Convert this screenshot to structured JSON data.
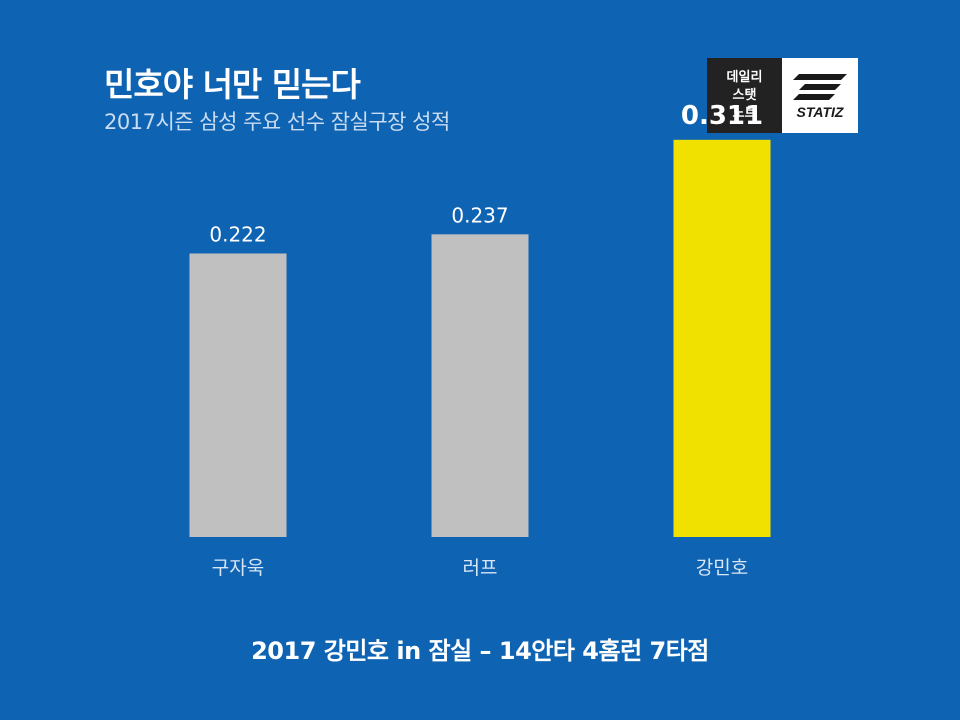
{
  "header": {
    "title": "민호야 너만 믿는다",
    "subtitle": "2017시즌 삼성 주요 선수 잠실구장 성적"
  },
  "logo": {
    "lines": [
      "데일리",
      "스탯",
      "노트"
    ],
    "brand": "STATIZ"
  },
  "colors": {
    "background": "#0f63b3",
    "bar_default": "#c0c0c0",
    "bar_highlight": "#f0e100",
    "text": "#ffffff"
  },
  "chart_data": {
    "type": "bar",
    "title": "2017시즌 삼성 주요 선수 잠실구장 성적",
    "categories": [
      "구자욱",
      "러프",
      "강민호"
    ],
    "values": [
      0.222,
      0.237,
      0.311
    ],
    "value_labels": [
      "0.222",
      "0.237",
      "0.311"
    ],
    "highlight_index": 2,
    "xlabel": "",
    "ylabel": "",
    "ylim": [
      0,
      0.35
    ],
    "grid": false
  },
  "footer": {
    "text": "2017 강민호 in 잠실 – 14안타 4홈런 7타점"
  }
}
